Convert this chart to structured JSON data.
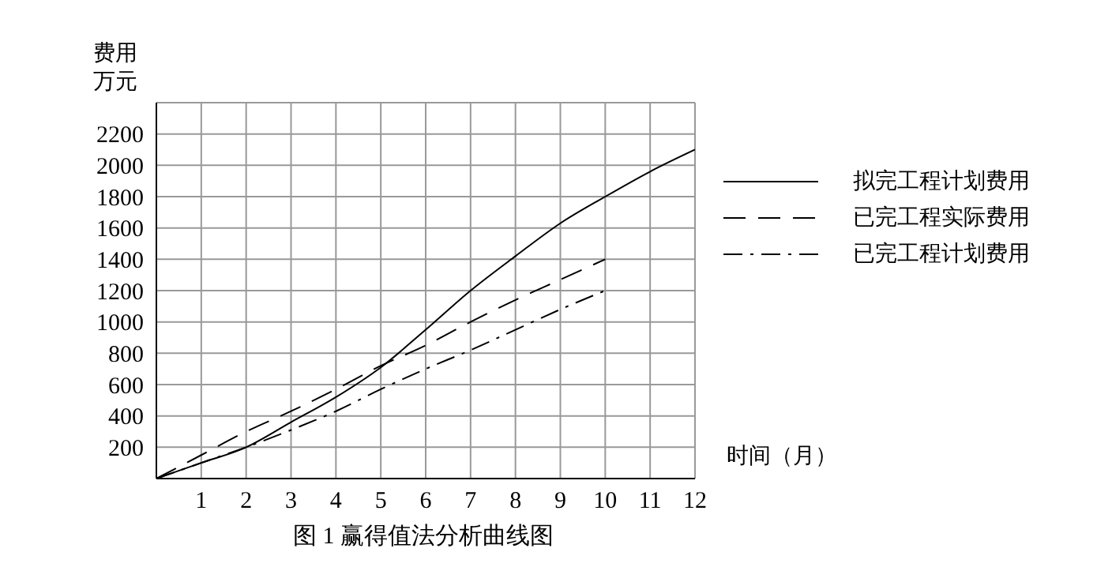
{
  "chart_data": {
    "type": "line",
    "title": "图 1 赢得值法分析曲线图",
    "xlabel": "时间（月）",
    "ylabel": "费用万元",
    "x": [
      0,
      1,
      2,
      3,
      4,
      5,
      6,
      7,
      8,
      9,
      10,
      11,
      12
    ],
    "series": [
      {
        "name": "拟完工程计划费用",
        "color": "#000000",
        "line_style": "solid",
        "values": [
          0,
          100,
          200,
          360,
          520,
          710,
          950,
          1200,
          1420,
          1630,
          1800,
          1960,
          2100
        ]
      },
      {
        "name": "已完工程实际费用",
        "color": "#000000",
        "line_style": "dashed",
        "values": [
          0,
          150,
          300,
          430,
          570,
          720,
          850,
          1000,
          1140,
          1270,
          1400,
          null,
          null
        ]
      },
      {
        "name": "已完工程计划费用",
        "color": "#000000",
        "line_style": "dashdot",
        "values": [
          0,
          100,
          200,
          310,
          430,
          570,
          700,
          820,
          950,
          1080,
          1200,
          null,
          null
        ]
      }
    ],
    "xlim": [
      0,
      12
    ],
    "xticks": [
      1,
      2,
      3,
      4,
      5,
      6,
      7,
      8,
      9,
      10,
      11,
      12
    ],
    "ylim": [
      0,
      2400
    ],
    "yticks": [
      {
        "value": 0,
        "label": null
      },
      200,
      400,
      600,
      800,
      1000,
      1200,
      1400,
      1600,
      1800,
      2000,
      2200,
      {
        "value": 2400,
        "label": null
      }
    ],
    "grid": true,
    "legend": "right",
    "marker": "none"
  }
}
